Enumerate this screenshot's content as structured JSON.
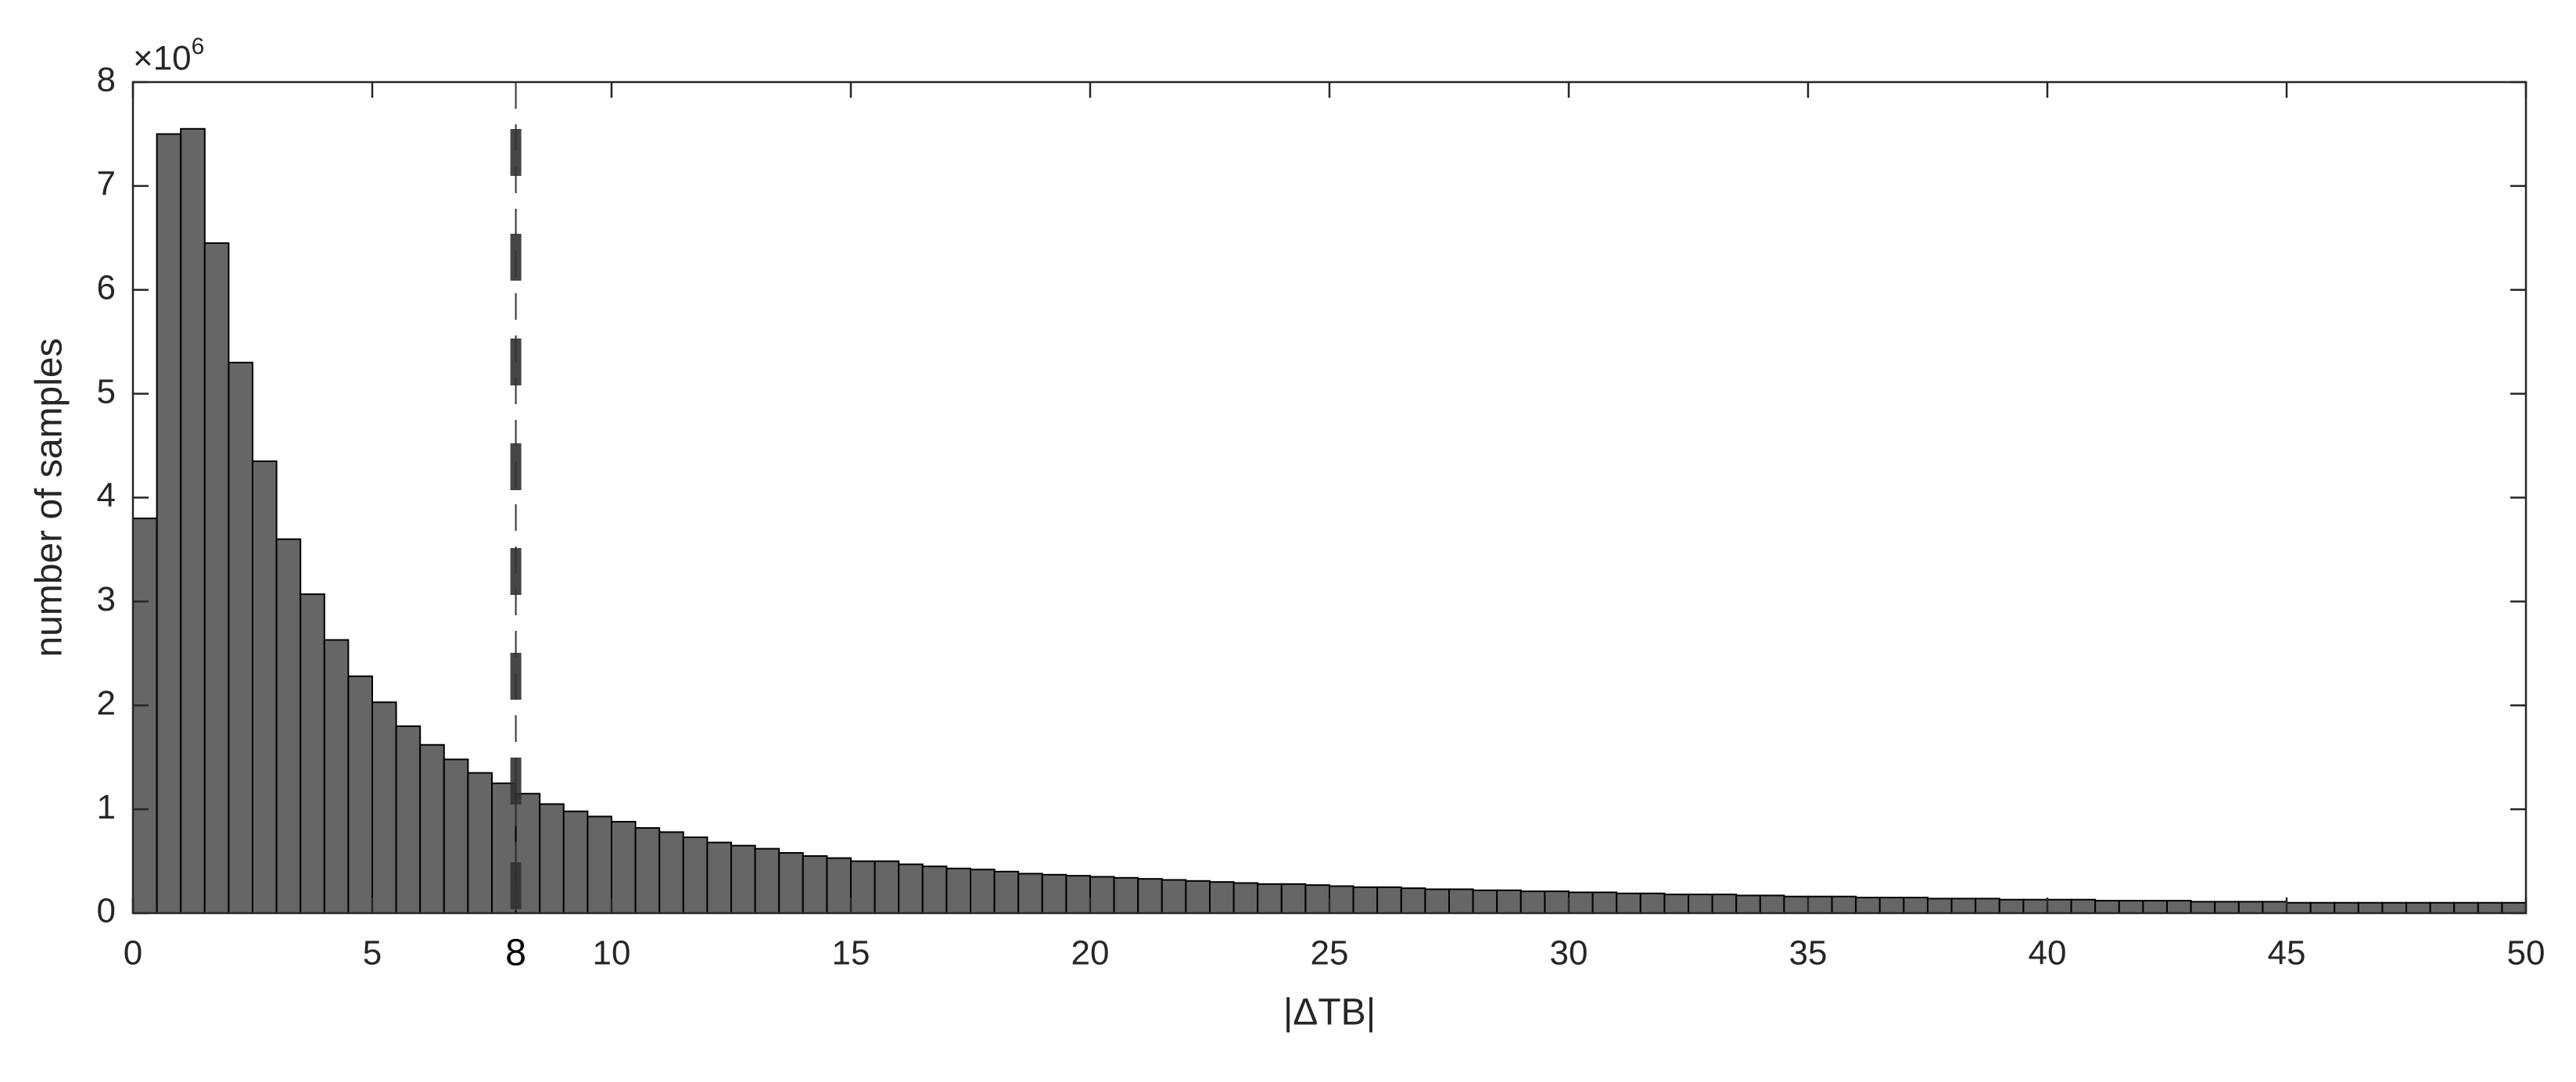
{
  "chart_data": {
    "type": "histogram",
    "x_label": "|ΔTB|",
    "y_label": "number of samples",
    "y_multiplier": {
      "base": "×10",
      "exponent": "6"
    },
    "bins": [
      0,
      0.5,
      1,
      1.5,
      2,
      2.5,
      3,
      3.5,
      4,
      4.5,
      5,
      5.5,
      6,
      6.5,
      7,
      7.5,
      8,
      8.5,
      9,
      9.5,
      10,
      10.5,
      11,
      11.5,
      12,
      12.5,
      13,
      13.5,
      14,
      14.5,
      15,
      15.5,
      16,
      16.5,
      17,
      17.5,
      18,
      18.5,
      19,
      19.5,
      20,
      20.5,
      21,
      21.5,
      22,
      22.5,
      23,
      23.5,
      24,
      24.5,
      25,
      25.5,
      26,
      26.5,
      27,
      27.5,
      28,
      28.5,
      29,
      29.5,
      30,
      30.5,
      31,
      31.5,
      32,
      32.5,
      33,
      33.5,
      34,
      34.5,
      35,
      35.5,
      36,
      36.5,
      37,
      37.5,
      38,
      38.5,
      39,
      39.5,
      40,
      40.5,
      41,
      41.5,
      42,
      42.5,
      43,
      43.5,
      44,
      44.5,
      45,
      45.5,
      46,
      46.5,
      47,
      47.5,
      48,
      48.5,
      49,
      49.5,
      50
    ],
    "values": [
      3.8,
      7.5,
      7.55,
      6.45,
      5.3,
      4.35,
      3.6,
      3.07,
      2.63,
      2.28,
      2.03,
      1.8,
      1.62,
      1.48,
      1.35,
      1.25,
      1.15,
      1.05,
      0.98,
      0.93,
      0.88,
      0.82,
      0.78,
      0.73,
      0.68,
      0.65,
      0.62,
      0.58,
      0.55,
      0.53,
      0.5,
      0.5,
      0.47,
      0.45,
      0.43,
      0.42,
      0.4,
      0.38,
      0.37,
      0.36,
      0.35,
      0.34,
      0.33,
      0.32,
      0.31,
      0.3,
      0.29,
      0.28,
      0.28,
      0.27,
      0.26,
      0.25,
      0.25,
      0.24,
      0.23,
      0.23,
      0.22,
      0.22,
      0.21,
      0.21,
      0.2,
      0.2,
      0.19,
      0.19,
      0.18,
      0.18,
      0.18,
      0.17,
      0.17,
      0.16,
      0.16,
      0.16,
      0.15,
      0.15,
      0.15,
      0.14,
      0.14,
      0.14,
      0.13,
      0.13,
      0.13,
      0.13,
      0.12,
      0.12,
      0.12,
      0.12,
      0.11,
      0.11,
      0.11,
      0.11,
      0.1,
      0.1,
      0.1,
      0.1,
      0.1,
      0.1,
      0.1,
      0.1,
      0.1,
      0.1
    ],
    "color": "#666666",
    "threshold": 8,
    "xlim": [
      0,
      50
    ],
    "xticks": [
      0,
      5,
      10,
      15,
      20,
      25,
      30,
      35,
      40,
      45,
      50
    ],
    "ylim": [
      0,
      8
    ],
    "yticks": [
      0,
      1,
      2,
      3,
      4,
      5,
      6,
      7,
      8
    ]
  }
}
